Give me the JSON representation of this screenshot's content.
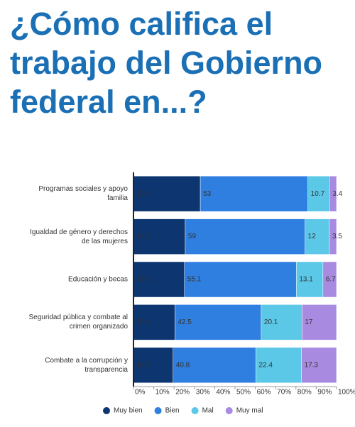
{
  "chart_data": {
    "type": "stacked-bar-horizontal",
    "title": "¿Cómo califica el trabajo del Gobierno federal en...?",
    "categories": [
      "Programas sociales y apoyo familia",
      "Igualdad de género y derechos de las mujeres",
      "Educación y becas",
      "Seguridad pública y combate al crimen organizado",
      "Combate a la corrupción y transparencia"
    ],
    "series": [
      {
        "name": "Muy bien",
        "color": "#0d3570",
        "values": [
          32.9,
          25.5,
          25.1,
          20.4,
          19.5
        ]
      },
      {
        "name": "Bien",
        "color": "#2f7fe0",
        "values": [
          53,
          59,
          55.1,
          42.5,
          40.8
        ]
      },
      {
        "name": "Mal",
        "color": "#5bc8e8",
        "values": [
          10.7,
          12,
          13.1,
          20.1,
          22.4
        ]
      },
      {
        "name": "Muy mal",
        "color": "#a88be0",
        "values": [
          3.4,
          3.5,
          6.7,
          17,
          17.3
        ]
      }
    ],
    "xlim": [
      0,
      100
    ],
    "xticks": [
      {
        "value": 0,
        "label": "0%"
      },
      {
        "value": 10,
        "label": "10%"
      },
      {
        "value": 20,
        "label": "20%"
      },
      {
        "value": 30,
        "label": "30%"
      },
      {
        "value": 40,
        "label": "40%"
      },
      {
        "value": 50,
        "label": "50%"
      },
      {
        "value": 60,
        "label": "60%"
      },
      {
        "value": 70,
        "label": "70%"
      },
      {
        "value": 80,
        "label": "80%"
      },
      {
        "value": 90,
        "label": "90%"
      },
      {
        "value": 100,
        "label": "100%"
      }
    ],
    "legend": "bottom"
  }
}
